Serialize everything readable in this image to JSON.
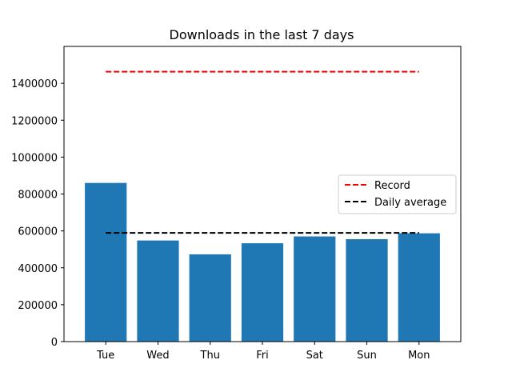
{
  "chart_data": {
    "type": "bar",
    "title": "Downloads in the last 7 days",
    "xlabel": "",
    "ylabel": "",
    "categories": [
      "Tue",
      "Wed",
      "Thu",
      "Fri",
      "Sat",
      "Sun",
      "Mon"
    ],
    "values": [
      860000,
      548000,
      473000,
      533000,
      570000,
      555000,
      587000
    ],
    "ylim": [
      0,
      1600000
    ],
    "yticks": [
      0,
      200000,
      400000,
      600000,
      800000,
      1000000,
      1200000,
      1400000
    ],
    "ytick_labels": [
      "0",
      "200000",
      "400000",
      "600000",
      "800000",
      "1000000",
      "1200000",
      "1400000"
    ],
    "bar_color": "#1f77b4",
    "reference_lines": [
      {
        "name": "Record",
        "value": 1463000,
        "color": "#ff0000",
        "style": "dashed"
      },
      {
        "name": "Daily average",
        "value": 589000,
        "color": "#000000",
        "style": "dashed"
      }
    ],
    "legend_position": "center-right",
    "grid": false
  }
}
